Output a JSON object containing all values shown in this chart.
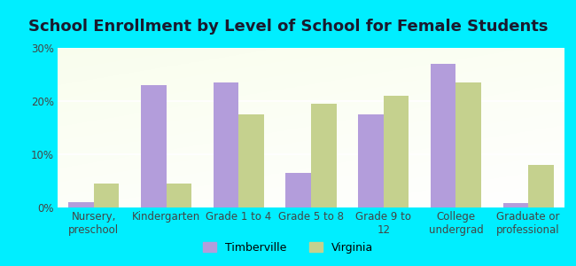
{
  "title": "School Enrollment by Level of School for Female Students",
  "categories": [
    "Nursery,\npreschool",
    "Kindergarten",
    "Grade 1 to 4",
    "Grade 5 to 8",
    "Grade 9 to\n12",
    "College\nundergrad",
    "Graduate or\nprofessional"
  ],
  "timberville": [
    1.0,
    23.0,
    23.5,
    6.5,
    17.5,
    27.0,
    0.8
  ],
  "virginia": [
    4.5,
    4.5,
    17.5,
    19.5,
    21.0,
    23.5,
    8.0
  ],
  "timberville_color": "#b39ddb",
  "virginia_color": "#c5d18e",
  "background_outer": "#00eeff",
  "ylim": [
    0,
    30
  ],
  "yticks": [
    0,
    10,
    20,
    30
  ],
  "ytick_labels": [
    "0%",
    "10%",
    "20%",
    "30%"
  ],
  "legend_labels": [
    "Timberville",
    "Virginia"
  ],
  "title_fontsize": 13,
  "tick_fontsize": 8.5,
  "legend_fontsize": 9,
  "bar_width": 0.35
}
